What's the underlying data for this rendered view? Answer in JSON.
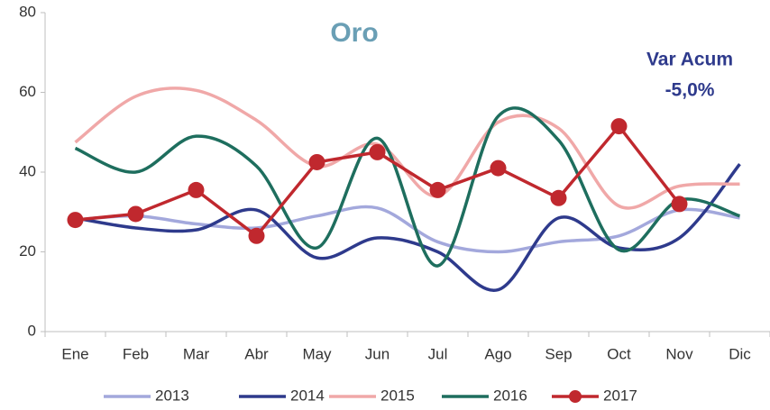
{
  "chart_data": {
    "type": "line",
    "title": "Oro",
    "annotations": [
      "Var Acum",
      "-5,0%"
    ],
    "categories": [
      "Ene",
      "Feb",
      "Mar",
      "Abr",
      "May",
      "Jun",
      "Jul",
      "Ago",
      "Sep",
      "Oct",
      "Nov",
      "Dic"
    ],
    "series": [
      {
        "name": "2013",
        "color": "#a3a8dc",
        "smooth": true,
        "values": [
          28,
          29,
          27,
          26,
          29,
          31,
          22.5,
          20,
          22.5,
          24,
          30.5,
          28.5
        ]
      },
      {
        "name": "2014",
        "color": "#2e3a8c",
        "smooth": true,
        "values": [
          28.5,
          26,
          25.5,
          30.5,
          18.5,
          23.5,
          20,
          10.5,
          28.5,
          21,
          23.5,
          42
        ]
      },
      {
        "name": "2015",
        "color": "#f0a8a8",
        "smooth": true,
        "values": [
          47.5,
          59,
          60.5,
          53,
          41.5,
          47,
          34,
          52.5,
          51,
          31.5,
          36.5,
          37
        ]
      },
      {
        "name": "2016",
        "color": "#1e6e5e",
        "smooth": true,
        "values": [
          46,
          40,
          49,
          41.5,
          21,
          48.5,
          16.5,
          54,
          48,
          20.5,
          33,
          29
        ]
      },
      {
        "name": "2017",
        "color": "#c0282e",
        "smooth": false,
        "markers": true,
        "values": [
          28,
          29.5,
          35.5,
          24,
          42.5,
          45,
          35.5,
          41,
          33.5,
          51.5,
          32,
          null
        ]
      }
    ],
    "ylim": [
      0,
      80
    ],
    "yticks": [
      0,
      20,
      40,
      60,
      80
    ],
    "grid": false,
    "legend": "bottom"
  }
}
